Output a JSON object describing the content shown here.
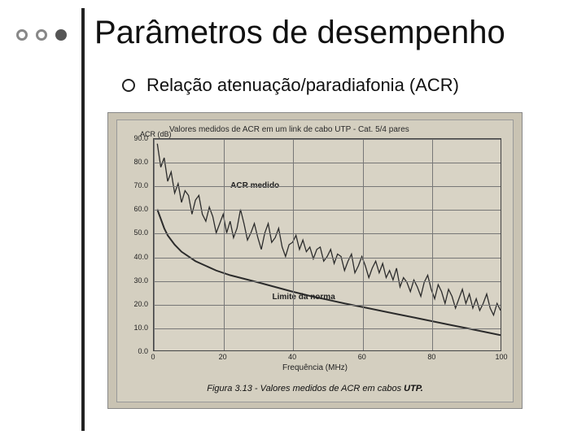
{
  "title": "Parâmetros de desempenho",
  "bullet_text": "Relação atenuação/paradiafonia (ACR)",
  "dots": {
    "colors_border": "#888888",
    "colors_fill": "#555555"
  },
  "figure": {
    "outer_bg": "#c9c3b3",
    "paper_bg": "#d4cfc0",
    "plot_bg": "#d8d3c5",
    "line_color": "#2b2b2b",
    "grid_color": "#777777",
    "y_title": "ACR (dB)",
    "top_title": "Valores medidos de ACR em um link de cabo UTP - Cat. 5/4 pares",
    "x_title": "Frequência (MHz)",
    "caption_prefix": "Figura 3.13 - Valores medidos de ACR em cabos ",
    "caption_bold": "UTP.",
    "labels": {
      "measured": "ACR medido",
      "limit": "Limite da norma"
    },
    "ylim": [
      0,
      90
    ],
    "ytick_step": 10,
    "xlim": [
      0,
      100
    ],
    "xtick_step": 20,
    "series": {
      "limit": [
        [
          1,
          60
        ],
        [
          2,
          56
        ],
        [
          3,
          52
        ],
        [
          4,
          49
        ],
        [
          5,
          47
        ],
        [
          6,
          45
        ],
        [
          8,
          42
        ],
        [
          10,
          40
        ],
        [
          12,
          38
        ],
        [
          15,
          36
        ],
        [
          18,
          34
        ],
        [
          22,
          32
        ],
        [
          26,
          30.5
        ],
        [
          30,
          29
        ],
        [
          35,
          27
        ],
        [
          40,
          25
        ],
        [
          45,
          23.2
        ],
        [
          50,
          21.6
        ],
        [
          55,
          20
        ],
        [
          60,
          18.5
        ],
        [
          65,
          17
        ],
        [
          70,
          15.5
        ],
        [
          75,
          14
        ],
        [
          80,
          12.5
        ],
        [
          85,
          11
        ],
        [
          90,
          9.5
        ],
        [
          95,
          8
        ],
        [
          100,
          6.5
        ]
      ],
      "measured": [
        [
          1,
          88
        ],
        [
          2,
          78
        ],
        [
          3,
          82
        ],
        [
          4,
          72
        ],
        [
          5,
          76
        ],
        [
          6,
          67
        ],
        [
          7,
          71
        ],
        [
          8,
          63
        ],
        [
          9,
          68
        ],
        [
          10,
          66
        ],
        [
          11,
          58
        ],
        [
          12,
          64
        ],
        [
          13,
          66
        ],
        [
          14,
          58
        ],
        [
          15,
          55
        ],
        [
          16,
          61
        ],
        [
          17,
          57
        ],
        [
          18,
          50
        ],
        [
          19,
          54
        ],
        [
          20,
          58
        ],
        [
          21,
          50
        ],
        [
          22,
          55
        ],
        [
          23,
          48
        ],
        [
          24,
          52
        ],
        [
          25,
          60
        ],
        [
          26,
          54
        ],
        [
          27,
          47
        ],
        [
          28,
          50
        ],
        [
          29,
          54
        ],
        [
          30,
          48
        ],
        [
          31,
          43
        ],
        [
          32,
          50
        ],
        [
          33,
          54
        ],
        [
          34,
          46
        ],
        [
          35,
          48
        ],
        [
          36,
          52
        ],
        [
          37,
          44
        ],
        [
          38,
          40
        ],
        [
          39,
          45
        ],
        [
          40,
          46
        ],
        [
          41,
          49
        ],
        [
          42,
          43
        ],
        [
          43,
          47
        ],
        [
          44,
          42
        ],
        [
          45,
          44
        ],
        [
          46,
          39
        ],
        [
          47,
          43
        ],
        [
          48,
          44
        ],
        [
          49,
          38
        ],
        [
          50,
          40
        ],
        [
          51,
          43
        ],
        [
          52,
          37
        ],
        [
          53,
          41
        ],
        [
          54,
          40
        ],
        [
          55,
          34
        ],
        [
          56,
          38
        ],
        [
          57,
          41
        ],
        [
          58,
          33
        ],
        [
          59,
          36
        ],
        [
          60,
          40
        ],
        [
          61,
          36
        ],
        [
          62,
          31
        ],
        [
          63,
          35
        ],
        [
          64,
          38
        ],
        [
          65,
          33
        ],
        [
          66,
          37
        ],
        [
          67,
          31
        ],
        [
          68,
          34
        ],
        [
          69,
          30
        ],
        [
          70,
          35
        ],
        [
          71,
          27
        ],
        [
          72,
          31
        ],
        [
          73,
          29
        ],
        [
          74,
          25
        ],
        [
          75,
          30
        ],
        [
          76,
          27
        ],
        [
          77,
          23
        ],
        [
          78,
          29
        ],
        [
          79,
          32
        ],
        [
          80,
          26
        ],
        [
          81,
          22
        ],
        [
          82,
          28
        ],
        [
          83,
          25
        ],
        [
          84,
          20
        ],
        [
          85,
          26
        ],
        [
          86,
          23
        ],
        [
          87,
          18
        ],
        [
          88,
          22
        ],
        [
          89,
          26
        ],
        [
          90,
          20
        ],
        [
          91,
          24
        ],
        [
          92,
          18
        ],
        [
          93,
          22
        ],
        [
          94,
          17
        ],
        [
          95,
          20
        ],
        [
          96,
          24
        ],
        [
          97,
          18
        ],
        [
          98,
          15
        ],
        [
          99,
          20
        ],
        [
          100,
          17
        ]
      ]
    }
  }
}
